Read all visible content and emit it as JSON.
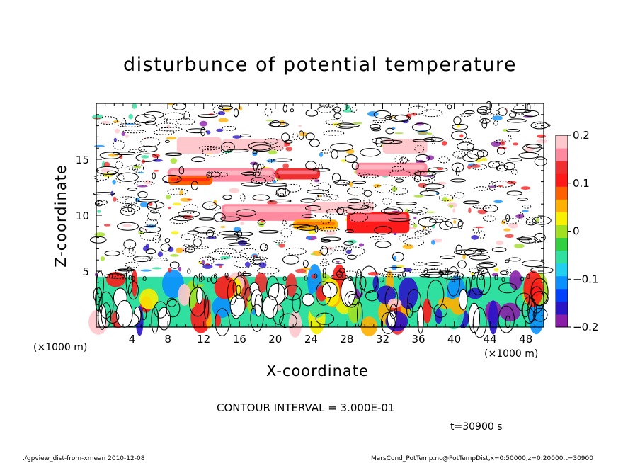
{
  "chart_data": {
    "type": "heatmap",
    "title": "disturbunce of potential temperature",
    "xlabel": "X-coordinate",
    "ylabel": "Z-coordinate",
    "x_unit_left": "(×1000 m)",
    "x_unit_right": "(×1000 m)",
    "xlim": [
      0,
      50
    ],
    "ylim": [
      0,
      20
    ],
    "x_ticks": [
      4,
      8,
      12,
      16,
      20,
      24,
      28,
      32,
      36,
      40,
      44,
      48
    ],
    "y_ticks": [
      5,
      10,
      15
    ],
    "colorbar": {
      "range": [
        -0.2,
        0.2
      ],
      "ticks": [
        {
          "value": 0.2,
          "label": "0.2"
        },
        {
          "value": 0.1,
          "label": "0.1"
        },
        {
          "value": 0,
          "label": "0"
        },
        {
          "value": -0.1,
          "label": "−0.1"
        },
        {
          "value": -0.2,
          "label": "−0.2"
        }
      ],
      "colors": [
        "#8a1ea8",
        "#2a14c8",
        "#0040ff",
        "#0a90ff",
        "#20d0f0",
        "#30e0a0",
        "#30d040",
        "#a0e020",
        "#f8f000",
        "#ffb000",
        "#ff6000",
        "#ff1a1a",
        "#f03030",
        "#ff8aa0",
        "#ffc8cc"
      ]
    },
    "regions": [
      {
        "x": [
          9,
          14
        ],
        "z": [
          15.5,
          17
        ],
        "value": 0.18
      },
      {
        "x": [
          14,
          21
        ],
        "z": [
          15.8,
          16.8
        ],
        "value": 0.19
      },
      {
        "x": [
          8,
          20
        ],
        "z": [
          13,
          14.2
        ],
        "value": 0.15
      },
      {
        "x": [
          20,
          25
        ],
        "z": [
          13.2,
          14.2
        ],
        "value": 0.13
      },
      {
        "x": [
          8,
          13
        ],
        "z": [
          12.7,
          13.5
        ],
        "value": 0.08
      },
      {
        "x": [
          32,
          37
        ],
        "z": [
          15.5,
          16.8
        ],
        "value": 0.2
      },
      {
        "x": [
          29,
          37
        ],
        "z": [
          13.5,
          14.7
        ],
        "value": 0.15
      },
      {
        "x": [
          28,
          35
        ],
        "z": [
          8.4,
          10.3
        ],
        "value": 0.12
      },
      {
        "x": [
          24,
          31
        ],
        "z": [
          10.2,
          11.2
        ],
        "value": 0.19
      },
      {
        "x": [
          14,
          24
        ],
        "z": [
          9.5,
          11
        ],
        "value": 0.16
      },
      {
        "x": [
          22,
          27
        ],
        "z": [
          8.7,
          9.6
        ],
        "value": 0.05
      },
      {
        "x": [
          0,
          50
        ],
        "z": [
          0,
          4.5
        ],
        "value": -0.06
      }
    ],
    "contour_interval": "CONTOUR INTERVAL = 3.000E-01",
    "time_label": "t=30900 s"
  },
  "footer": {
    "left": "./gpview_dist-from-xmean   2010-12-08",
    "right": "MarsCond_PotTemp.nc@PotTempDist,x=0:50000,z=0:20000,t=30900"
  }
}
